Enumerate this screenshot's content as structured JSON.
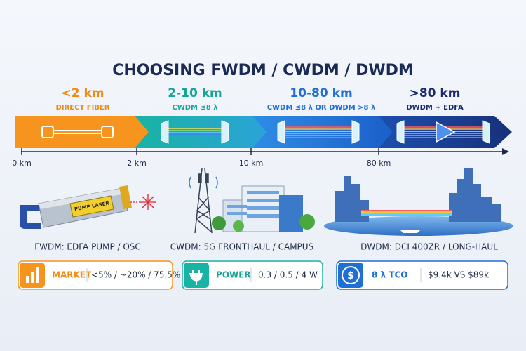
{
  "title": "CHOOSING FWDM / CWDM / DWDM",
  "segments": [
    {
      "range": "<2 km",
      "label": "DIRECT FIBER"
    },
    {
      "range": "2-10 km",
      "label": "CWDM ≤8 λ"
    },
    {
      "range": "10-80 km",
      "label": "CWDM ≤8 λ OR DWDM >8 λ"
    },
    {
      "range": ">80 km",
      "label": "DWDM + EDFA"
    }
  ],
  "axis": {
    "ticks": [
      "0 km",
      "2 km",
      "10 km",
      "80 km"
    ]
  },
  "illustrations": {
    "transceiver_label": "PUMP LASER"
  },
  "captions": [
    "FWDM: EDFA PUMP / OSC",
    "CWDM: 5G FRONTHAUL / CAMPUS",
    "DWDM: DCI 400ZR / LONG-HAUL"
  ],
  "cards": [
    {
      "label": "MARKET",
      "value": "<5% / ~20% / 75.5%"
    },
    {
      "label": "POWER",
      "value": "0.3 / 0.5 / 4 W"
    },
    {
      "icon_symbol": "$",
      "label": "8 λ TCO",
      "value": "$9.4k VS $89k"
    }
  ]
}
